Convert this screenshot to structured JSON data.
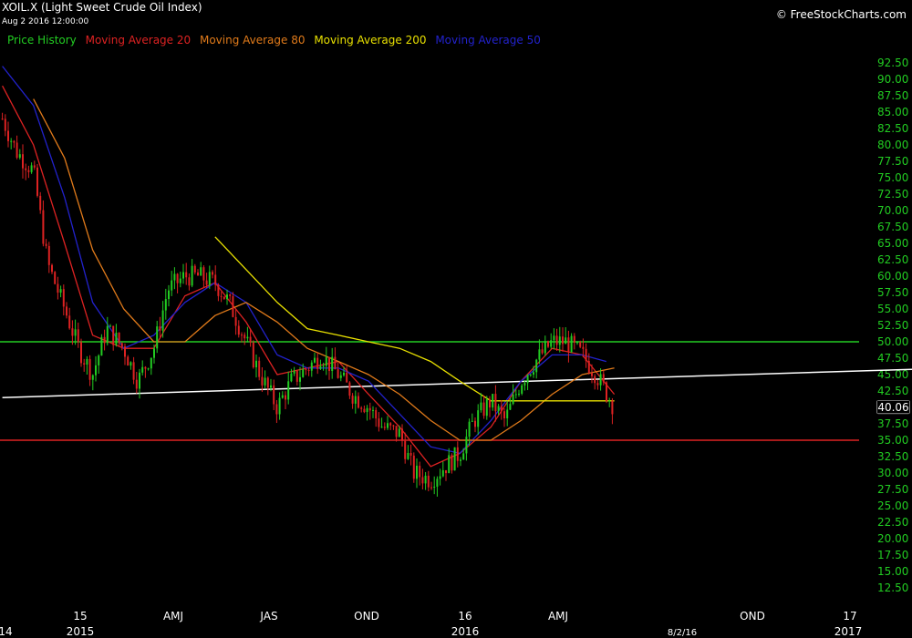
{
  "header": {
    "title": "XOIL.X (Light Sweet Crude Oil Index)",
    "datetime": "Aug 2 2016 12:00:00",
    "copyright": "© FreeStockCharts.com"
  },
  "legend": [
    {
      "name": "Price History",
      "color": "#22cc22"
    },
    {
      "name": "Moving Average 20",
      "color": "#dd2222"
    },
    {
      "name": "Moving Average 80",
      "color": "#e07a1a"
    },
    {
      "name": "Moving Average 200",
      "color": "#e8e000"
    },
    {
      "name": "Moving Average 50",
      "color": "#2222cc"
    }
  ],
  "chart_data": {
    "type": "line",
    "y_ticks": [
      "92.50",
      "90.00",
      "87.50",
      "85.00",
      "82.50",
      "80.00",
      "77.50",
      "75.00",
      "72.50",
      "70.00",
      "67.50",
      "65.00",
      "62.50",
      "60.00",
      "57.50",
      "55.00",
      "52.50",
      "50.00",
      "47.50",
      "45.00",
      "42.50",
      "40.00",
      "37.50",
      "35.00",
      "32.50",
      "30.00",
      "27.50",
      "25.00",
      "22.50",
      "20.00",
      "17.50",
      "15.00",
      "12.50"
    ],
    "ylim": [
      12.5,
      92.5
    ],
    "x_ticks_top": [
      "15",
      "AMJ",
      "JAS",
      "OND",
      "16",
      "AMJ",
      "OND",
      "17"
    ],
    "x_ticks_bottom": [
      "14",
      "2015",
      "2016",
      "8/2/16",
      "2017"
    ],
    "last_price_label": "40.06",
    "last_price": 40.06,
    "horizontal_lines": [
      {
        "value": 50.0,
        "color": "#22cc22"
      },
      {
        "value": 35.0,
        "color": "#dd2222"
      }
    ],
    "trend_line": {
      "color": "#ffffff",
      "start": [
        "2014-12",
        41.5
      ],
      "end": [
        "2017-01",
        45.8
      ]
    },
    "price_series": {
      "name": "Price History",
      "x": [
        "2014-12-01",
        "2014-12-15",
        "2015-01-01",
        "2015-01-15",
        "2015-02-01",
        "2015-02-15",
        "2015-03-01",
        "2015-03-15",
        "2015-04-01",
        "2015-04-15",
        "2015-05-01",
        "2015-05-15",
        "2015-06-01",
        "2015-06-15",
        "2015-07-01",
        "2015-07-15",
        "2015-08-01",
        "2015-08-15",
        "2015-09-01",
        "2015-09-15",
        "2015-10-01",
        "2015-10-15",
        "2015-11-01",
        "2015-11-15",
        "2015-12-01",
        "2015-12-15",
        "2016-01-01",
        "2016-01-15",
        "2016-02-01",
        "2016-02-15",
        "2016-03-01",
        "2016-03-15",
        "2016-04-01",
        "2016-04-15",
        "2016-05-01",
        "2016-05-15",
        "2016-06-01",
        "2016-06-15",
        "2016-07-01",
        "2016-07-15",
        "2016-08-02"
      ],
      "values": [
        84,
        79,
        76,
        62,
        55,
        49,
        45,
        52,
        49,
        44,
        49,
        58,
        60,
        60,
        59,
        56,
        50,
        45,
        40,
        44,
        46,
        48,
        45,
        42,
        40,
        37,
        36,
        30,
        29,
        31,
        33,
        38,
        41,
        38,
        44,
        47,
        50,
        50,
        48,
        45,
        40
      ]
    },
    "series": [
      {
        "name": "Moving Average 20",
        "color": "#dd2222",
        "x": [
          "2014-12-01",
          "2015-01-01",
          "2015-02-01",
          "2015-03-01",
          "2015-04-01",
          "2015-05-01",
          "2015-06-01",
          "2015-07-01",
          "2015-08-01",
          "2015-09-01",
          "2015-10-01",
          "2015-11-01",
          "2015-12-01",
          "2016-01-01",
          "2016-02-01",
          "2016-03-01",
          "2016-04-01",
          "2016-05-01",
          "2016-06-01",
          "2016-07-01",
          "2016-08-02"
        ],
        "values": [
          89,
          80,
          65,
          51,
          49,
          49,
          57,
          59,
          53,
          45,
          46,
          47,
          42,
          37,
          31,
          33,
          37,
          44,
          49,
          48,
          42
        ]
      },
      {
        "name": "Moving Average 50",
        "color": "#2222cc",
        "x": [
          "2014-12-01",
          "2015-01-01",
          "2015-02-01",
          "2015-03-01",
          "2015-04-01",
          "2015-05-01",
          "2015-06-01",
          "2015-07-01",
          "2015-08-01",
          "2015-09-01",
          "2015-10-01",
          "2015-11-01",
          "2015-12-01",
          "2016-01-01",
          "2016-02-01",
          "2016-03-01",
          "2016-04-01",
          "2016-05-01",
          "2016-06-01",
          "2016-07-01",
          "2016-07-25"
        ],
        "values": [
          92,
          86,
          72,
          56,
          49,
          51,
          56,
          59,
          56,
          48,
          46,
          46,
          44,
          39,
          34,
          33,
          38,
          44,
          48,
          48,
          47
        ]
      },
      {
        "name": "Moving Average 80",
        "color": "#e07a1a",
        "x": [
          "2015-01-01",
          "2015-02-01",
          "2015-03-01",
          "2015-04-01",
          "2015-05-01",
          "2015-06-01",
          "2015-07-01",
          "2015-08-01",
          "2015-09-01",
          "2015-10-01",
          "2015-11-01",
          "2015-12-01",
          "2016-01-01",
          "2016-02-01",
          "2016-03-01",
          "2016-04-01",
          "2016-05-01",
          "2016-06-01",
          "2016-07-01",
          "2016-08-02"
        ],
        "values": [
          87,
          78,
          64,
          55,
          50,
          50,
          54,
          56,
          53,
          49,
          47,
          45,
          42,
          38,
          35,
          35,
          38,
          42,
          45,
          46
        ]
      },
      {
        "name": "Moving Average 200",
        "color": "#e8e000",
        "x": [
          "2015-07-01",
          "2015-08-01",
          "2015-09-01",
          "2015-10-01",
          "2015-11-01",
          "2015-12-01",
          "2016-01-01",
          "2016-02-01",
          "2016-03-01",
          "2016-04-01",
          "2016-05-01",
          "2016-06-01",
          "2016-07-01",
          "2016-08-02"
        ],
        "values": [
          66,
          61,
          56,
          52,
          51,
          50,
          49,
          47,
          44,
          41,
          41,
          41,
          41,
          41
        ]
      }
    ]
  }
}
